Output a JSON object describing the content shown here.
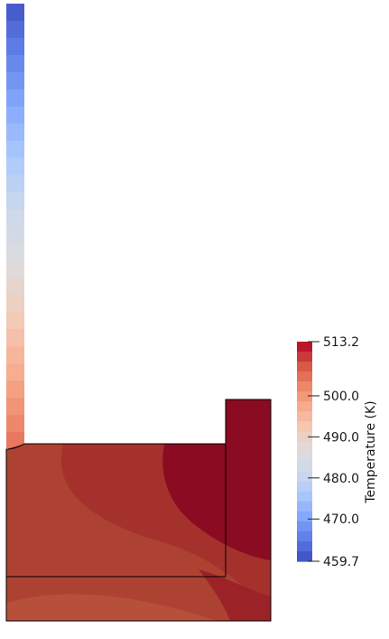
{
  "colorbar": {
    "title": "Temperature (K)",
    "min": 459.7,
    "max": 513.2,
    "tick_labels": [
      "513.2",
      "500.0",
      "490.0",
      "480.0",
      "470.0",
      "459.7"
    ],
    "tick_values": [
      513.2,
      500.0,
      490.0,
      480.0,
      470.0,
      459.7
    ],
    "colormap": "cool-to-warm",
    "colors": [
      "#3b4cc0",
      "#5d7ce6",
      "#82a6fb",
      "#aac7fd",
      "#cdd9ec",
      "#dddcdc",
      "#f2cbb7",
      "#f7ac8e",
      "#ee8468",
      "#d65244",
      "#b40426"
    ]
  },
  "field": {
    "quantity": "Temperature",
    "unit": "K",
    "outline_color": "#000000"
  }
}
